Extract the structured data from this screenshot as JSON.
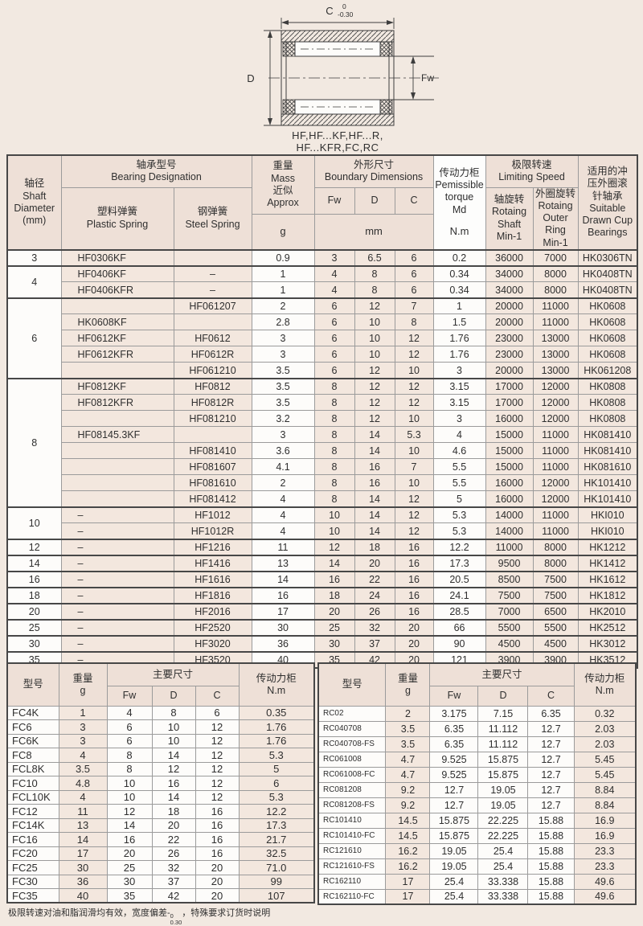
{
  "diagram": {
    "c_label": "C",
    "c_tol_top": "0",
    "c_tol_bottom": "-0.30",
    "d_label": "D",
    "fw_label": "Fw",
    "caption1": "HF,HF...KF,HF...R,",
    "caption2": "HF...KFR,FC,RC"
  },
  "colors": {
    "page_bg": "#f2e9e1",
    "header_bg": "#eee0d7",
    "tint_cell": "#f3e7de",
    "white_cell": "#fdfcfa",
    "border_dark": "#474747",
    "border_light": "#9b9b9b"
  },
  "main_table": {
    "header": {
      "shaft": "轴径\nShaft\nDiameter\n(mm)",
      "designation": "轴承型号\nBearing Designation",
      "plastic": "塑料弹簧\nPlastic Spring",
      "steel": "钢弹簧\nSteel Spring",
      "mass": "重量\nMass\n近似\nApprox",
      "mass_unit": "g",
      "boundary": "外形尺寸\nBoundary Dimensions",
      "fw": "Fw",
      "d": "D",
      "c": "C",
      "mm_unit": "mm",
      "torque": "传动力柜\nPemissible\ntorque\nMd",
      "torque_unit": "N.m",
      "speed": "极限转速\nLimiting Speed",
      "speed_shaft": "轴旋转\nRotaing\nShaft\nMin-1",
      "speed_outer": "外圈旋转\nRotaing\nOuter\nRing\nMin-1",
      "suitable": "适用的冲\n压外圈滚\n针轴承\nSuitable\nDrawn Cup\nBearings"
    },
    "rows": [
      {
        "shaft": "3",
        "span": 1,
        "group": true,
        "plastic": "HF0306KF",
        "steel": "",
        "mass": "0.9",
        "fw": "3",
        "d": "6.5",
        "c": "6",
        "torque": "0.2",
        "ns": "36000",
        "nr": "7000",
        "hk": "HK0306TN"
      },
      {
        "shaft": "4",
        "span": 2,
        "group": true,
        "plastic": "HF0406KF",
        "steel": "–",
        "mass": "1",
        "fw": "4",
        "d": "8",
        "c": "6",
        "torque": "0.34",
        "ns": "34000",
        "nr": "8000",
        "hk": "HK0408TN"
      },
      {
        "plastic": "HF0406KFR",
        "steel": "–",
        "mass": "1",
        "fw": "4",
        "d": "8",
        "c": "6",
        "torque": "0.34",
        "ns": "34000",
        "nr": "8000",
        "hk": "HK0408TN"
      },
      {
        "shaft": "6",
        "span": 5,
        "group": true,
        "plastic": "",
        "steel": "HF061207",
        "mass": "2",
        "fw": "6",
        "d": "12",
        "c": "7",
        "torque": "1",
        "ns": "20000",
        "nr": "11000",
        "hk": "HK0608"
      },
      {
        "plastic": "HK0608KF",
        "steel": "",
        "mass": "2.8",
        "fw": "6",
        "d": "10",
        "c": "8",
        "torque": "1.5",
        "ns": "20000",
        "nr": "11000",
        "hk": "HK0608"
      },
      {
        "plastic": "HF0612KF",
        "steel": "HF0612",
        "mass": "3",
        "fw": "6",
        "d": "10",
        "c": "12",
        "torque": "1.76",
        "ns": "23000",
        "nr": "13000",
        "hk": "HK0608"
      },
      {
        "plastic": "HF0612KFR",
        "steel": "HF0612R",
        "mass": "3",
        "fw": "6",
        "d": "10",
        "c": "12",
        "torque": "1.76",
        "ns": "23000",
        "nr": "13000",
        "hk": "HK0608"
      },
      {
        "plastic": "",
        "steel": "HF061210",
        "mass": "3.5",
        "fw": "6",
        "d": "12",
        "c": "10",
        "torque": "3",
        "ns": "20000",
        "nr": "13000",
        "hk": "HK061208"
      },
      {
        "shaft": "8",
        "span": 8,
        "group": true,
        "plastic": "HF0812KF",
        "steel": "HF0812",
        "mass": "3.5",
        "fw": "8",
        "d": "12",
        "c": "12",
        "torque": "3.15",
        "ns": "17000",
        "nr": "12000",
        "hk": "HK0808"
      },
      {
        "plastic": "HF0812KFR",
        "steel": "HF0812R",
        "mass": "3.5",
        "fw": "8",
        "d": "12",
        "c": "12",
        "torque": "3.15",
        "ns": "17000",
        "nr": "12000",
        "hk": "HK0808"
      },
      {
        "plastic": "",
        "steel": "HF081210",
        "mass": "3.2",
        "fw": "8",
        "d": "12",
        "c": "10",
        "torque": "3",
        "ns": "16000",
        "nr": "12000",
        "hk": "HK0808"
      },
      {
        "plastic": "HF08145.3KF",
        "steel": "",
        "mass": "3",
        "fw": "8",
        "d": "14",
        "c": "5.3",
        "torque": "4",
        "ns": "15000",
        "nr": "11000",
        "hk": "HK081410"
      },
      {
        "plastic": "",
        "steel": "HF081410",
        "mass": "3.6",
        "fw": "8",
        "d": "14",
        "c": "10",
        "torque": "4.6",
        "ns": "15000",
        "nr": "11000",
        "hk": "HK081410"
      },
      {
        "plastic": "",
        "steel": "HF081607",
        "mass": "4.1",
        "fw": "8",
        "d": "16",
        "c": "7",
        "torque": "5.5",
        "ns": "15000",
        "nr": "11000",
        "hk": "HK081610"
      },
      {
        "plastic": "",
        "steel": "HF081610",
        "mass": "2",
        "fw": "8",
        "d": "16",
        "c": "10",
        "torque": "5.5",
        "ns": "16000",
        "nr": "12000",
        "hk": "HK101410"
      },
      {
        "plastic": "",
        "steel": "HF081412",
        "mass": "4",
        "fw": "8",
        "d": "14",
        "c": "12",
        "torque": "5",
        "ns": "16000",
        "nr": "12000",
        "hk": "HK101410"
      },
      {
        "shaft": "10",
        "span": 2,
        "group": true,
        "plastic": "–",
        "steel": "HF1012",
        "mass": "4",
        "fw": "10",
        "d": "14",
        "c": "12",
        "torque": "5.3",
        "ns": "14000",
        "nr": "11000",
        "hk": "HKI010"
      },
      {
        "plastic": "–",
        "steel": "HF1012R",
        "mass": "4",
        "fw": "10",
        "d": "14",
        "c": "12",
        "torque": "5.3",
        "ns": "14000",
        "nr": "11000",
        "hk": "HKI010"
      },
      {
        "shaft": "12",
        "span": 1,
        "group": true,
        "plastic": "–",
        "steel": "HF1216",
        "mass": "11",
        "fw": "12",
        "d": "18",
        "c": "16",
        "torque": "12.2",
        "ns": "11000",
        "nr": "8000",
        "hk": "HK1212"
      },
      {
        "shaft": "14",
        "span": 1,
        "group": true,
        "plastic": "–",
        "steel": "HF1416",
        "mass": "13",
        "fw": "14",
        "d": "20",
        "c": "16",
        "torque": "17.3",
        "ns": "9500",
        "nr": "8000",
        "hk": "HK1412"
      },
      {
        "shaft": "16",
        "span": 1,
        "group": true,
        "plastic": "–",
        "steel": "HF1616",
        "mass": "14",
        "fw": "16",
        "d": "22",
        "c": "16",
        "torque": "20.5",
        "ns": "8500",
        "nr": "7500",
        "hk": "HK1612"
      },
      {
        "shaft": "18",
        "span": 1,
        "group": true,
        "plastic": "–",
        "steel": "HF1816",
        "mass": "16",
        "fw": "18",
        "d": "24",
        "c": "16",
        "torque": "24.1",
        "ns": "7500",
        "nr": "7500",
        "hk": "HK1812"
      },
      {
        "shaft": "20",
        "span": 1,
        "group": true,
        "plastic": "–",
        "steel": "HF2016",
        "mass": "17",
        "fw": "20",
        "d": "26",
        "c": "16",
        "torque": "28.5",
        "ns": "7000",
        "nr": "6500",
        "hk": "HK2010"
      },
      {
        "shaft": "25",
        "span": 1,
        "group": true,
        "plastic": "–",
        "steel": "HF2520",
        "mass": "30",
        "fw": "25",
        "d": "32",
        "c": "20",
        "torque": "66",
        "ns": "5500",
        "nr": "5500",
        "hk": "HK2512"
      },
      {
        "shaft": "30",
        "span": 1,
        "group": true,
        "plastic": "–",
        "steel": "HF3020",
        "mass": "36",
        "fw": "30",
        "d": "37",
        "c": "20",
        "torque": "90",
        "ns": "4500",
        "nr": "4500",
        "hk": "HK3012"
      },
      {
        "shaft": "35",
        "span": 1,
        "group": true,
        "plastic": "–",
        "steel": "HF3520",
        "mass": "40",
        "fw": "35",
        "d": "42",
        "c": "20",
        "torque": "121",
        "ns": "3900",
        "nr": "3900",
        "hk": "HK3512"
      }
    ]
  },
  "fc_table": {
    "header": {
      "model": "型号",
      "weight": "重量\ng",
      "dims": "主要尺寸",
      "fw": "Fw",
      "d": "D",
      "c": "C",
      "torque": "传动力柜\nN.m"
    },
    "rows": [
      {
        "model": "FC4K",
        "g": "1",
        "fw": "4",
        "d": "8",
        "c": "6",
        "nm": "0.35"
      },
      {
        "model": "FC6",
        "g": "3",
        "fw": "6",
        "d": "10",
        "c": "12",
        "nm": "1.76"
      },
      {
        "model": "FC6K",
        "g": "3",
        "fw": "6",
        "d": "10",
        "c": "12",
        "nm": "1.76"
      },
      {
        "model": "FC8",
        "g": "4",
        "fw": "8",
        "d": "14",
        "c": "12",
        "nm": "5.3"
      },
      {
        "model": "FCL8K",
        "g": "3.5",
        "fw": "8",
        "d": "12",
        "c": "12",
        "nm": "5"
      },
      {
        "model": "FC10",
        "g": "4.8",
        "fw": "10",
        "d": "16",
        "c": "12",
        "nm": "6"
      },
      {
        "model": "FCL10K",
        "g": "4",
        "fw": "10",
        "d": "14",
        "c": "12",
        "nm": "5.3"
      },
      {
        "model": "FC12",
        "g": "11",
        "fw": "12",
        "d": "18",
        "c": "16",
        "nm": "12.2"
      },
      {
        "model": "FC14K",
        "g": "13",
        "fw": "14",
        "d": "20",
        "c": "16",
        "nm": "17.3"
      },
      {
        "model": "FC16",
        "g": "14",
        "fw": "16",
        "d": "22",
        "c": "16",
        "nm": "21.7"
      },
      {
        "model": "FC20",
        "g": "17",
        "fw": "20",
        "d": "26",
        "c": "16",
        "nm": "32.5"
      },
      {
        "model": "FC25",
        "g": "30",
        "fw": "25",
        "d": "32",
        "c": "20",
        "nm": "71.0"
      },
      {
        "model": "FC30",
        "g": "36",
        "fw": "30",
        "d": "37",
        "c": "20",
        "nm": "99"
      },
      {
        "model": "FC35",
        "g": "40",
        "fw": "35",
        "d": "42",
        "c": "20",
        "nm": "107"
      }
    ]
  },
  "rc_table": {
    "header": {
      "model": "型号",
      "weight": "重量\ng",
      "dims": "主要尺寸",
      "fw": "Fw",
      "d": "D",
      "c": "C",
      "torque": "传动力柜\nN.m"
    },
    "rows": [
      {
        "model": "RC02",
        "g": "2",
        "fw": "3.175",
        "d": "7.15",
        "c": "6.35",
        "nm": "0.32"
      },
      {
        "model": "RC040708",
        "g": "3.5",
        "fw": "6.35",
        "d": "11.112",
        "c": "12.7",
        "nm": "2.03"
      },
      {
        "model": "RC040708-FS",
        "g": "3.5",
        "fw": "6.35",
        "d": "11.112",
        "c": "12.7",
        "nm": "2.03"
      },
      {
        "model": "RC061008",
        "g": "4.7",
        "fw": "9.525",
        "d": "15.875",
        "c": "12.7",
        "nm": "5.45"
      },
      {
        "model": "RC061008-FC",
        "g": "4.7",
        "fw": "9.525",
        "d": "15.875",
        "c": "12.7",
        "nm": "5.45"
      },
      {
        "model": "RC081208",
        "g": "9.2",
        "fw": "12.7",
        "d": "19.05",
        "c": "12.7",
        "nm": "8.84"
      },
      {
        "model": "RC081208-FS",
        "g": "9.2",
        "fw": "12.7",
        "d": "19.05",
        "c": "12.7",
        "nm": "8.84"
      },
      {
        "model": "RC101410",
        "g": "14.5",
        "fw": "15.875",
        "d": "22.225",
        "c": "15.88",
        "nm": "16.9"
      },
      {
        "model": "RC101410-FC",
        "g": "14.5",
        "fw": "15.875",
        "d": "22.225",
        "c": "15.88",
        "nm": "16.9"
      },
      {
        "model": "RC121610",
        "g": "16.2",
        "fw": "19.05",
        "d": "25.4",
        "c": "15.88",
        "nm": "23.3"
      },
      {
        "model": "RC121610-FS",
        "g": "16.2",
        "fw": "19.05",
        "d": "25.4",
        "c": "15.88",
        "nm": "23.3"
      },
      {
        "model": "RC162110",
        "g": "17",
        "fw": "25.4",
        "d": "33.338",
        "c": "15.88",
        "nm": "49.6"
      },
      {
        "model": "RC162110-FC",
        "g": "17",
        "fw": "25.4",
        "d": "33.338",
        "c": "15.88",
        "nm": "49.6"
      }
    ]
  },
  "footnote": {
    "prefix": "极限转速对油和脂润滑均有效，宽度偏差-",
    "tol_top": "0",
    "tol_bottom": "0.30",
    "suffix": "，特殊要求订货时说明"
  }
}
